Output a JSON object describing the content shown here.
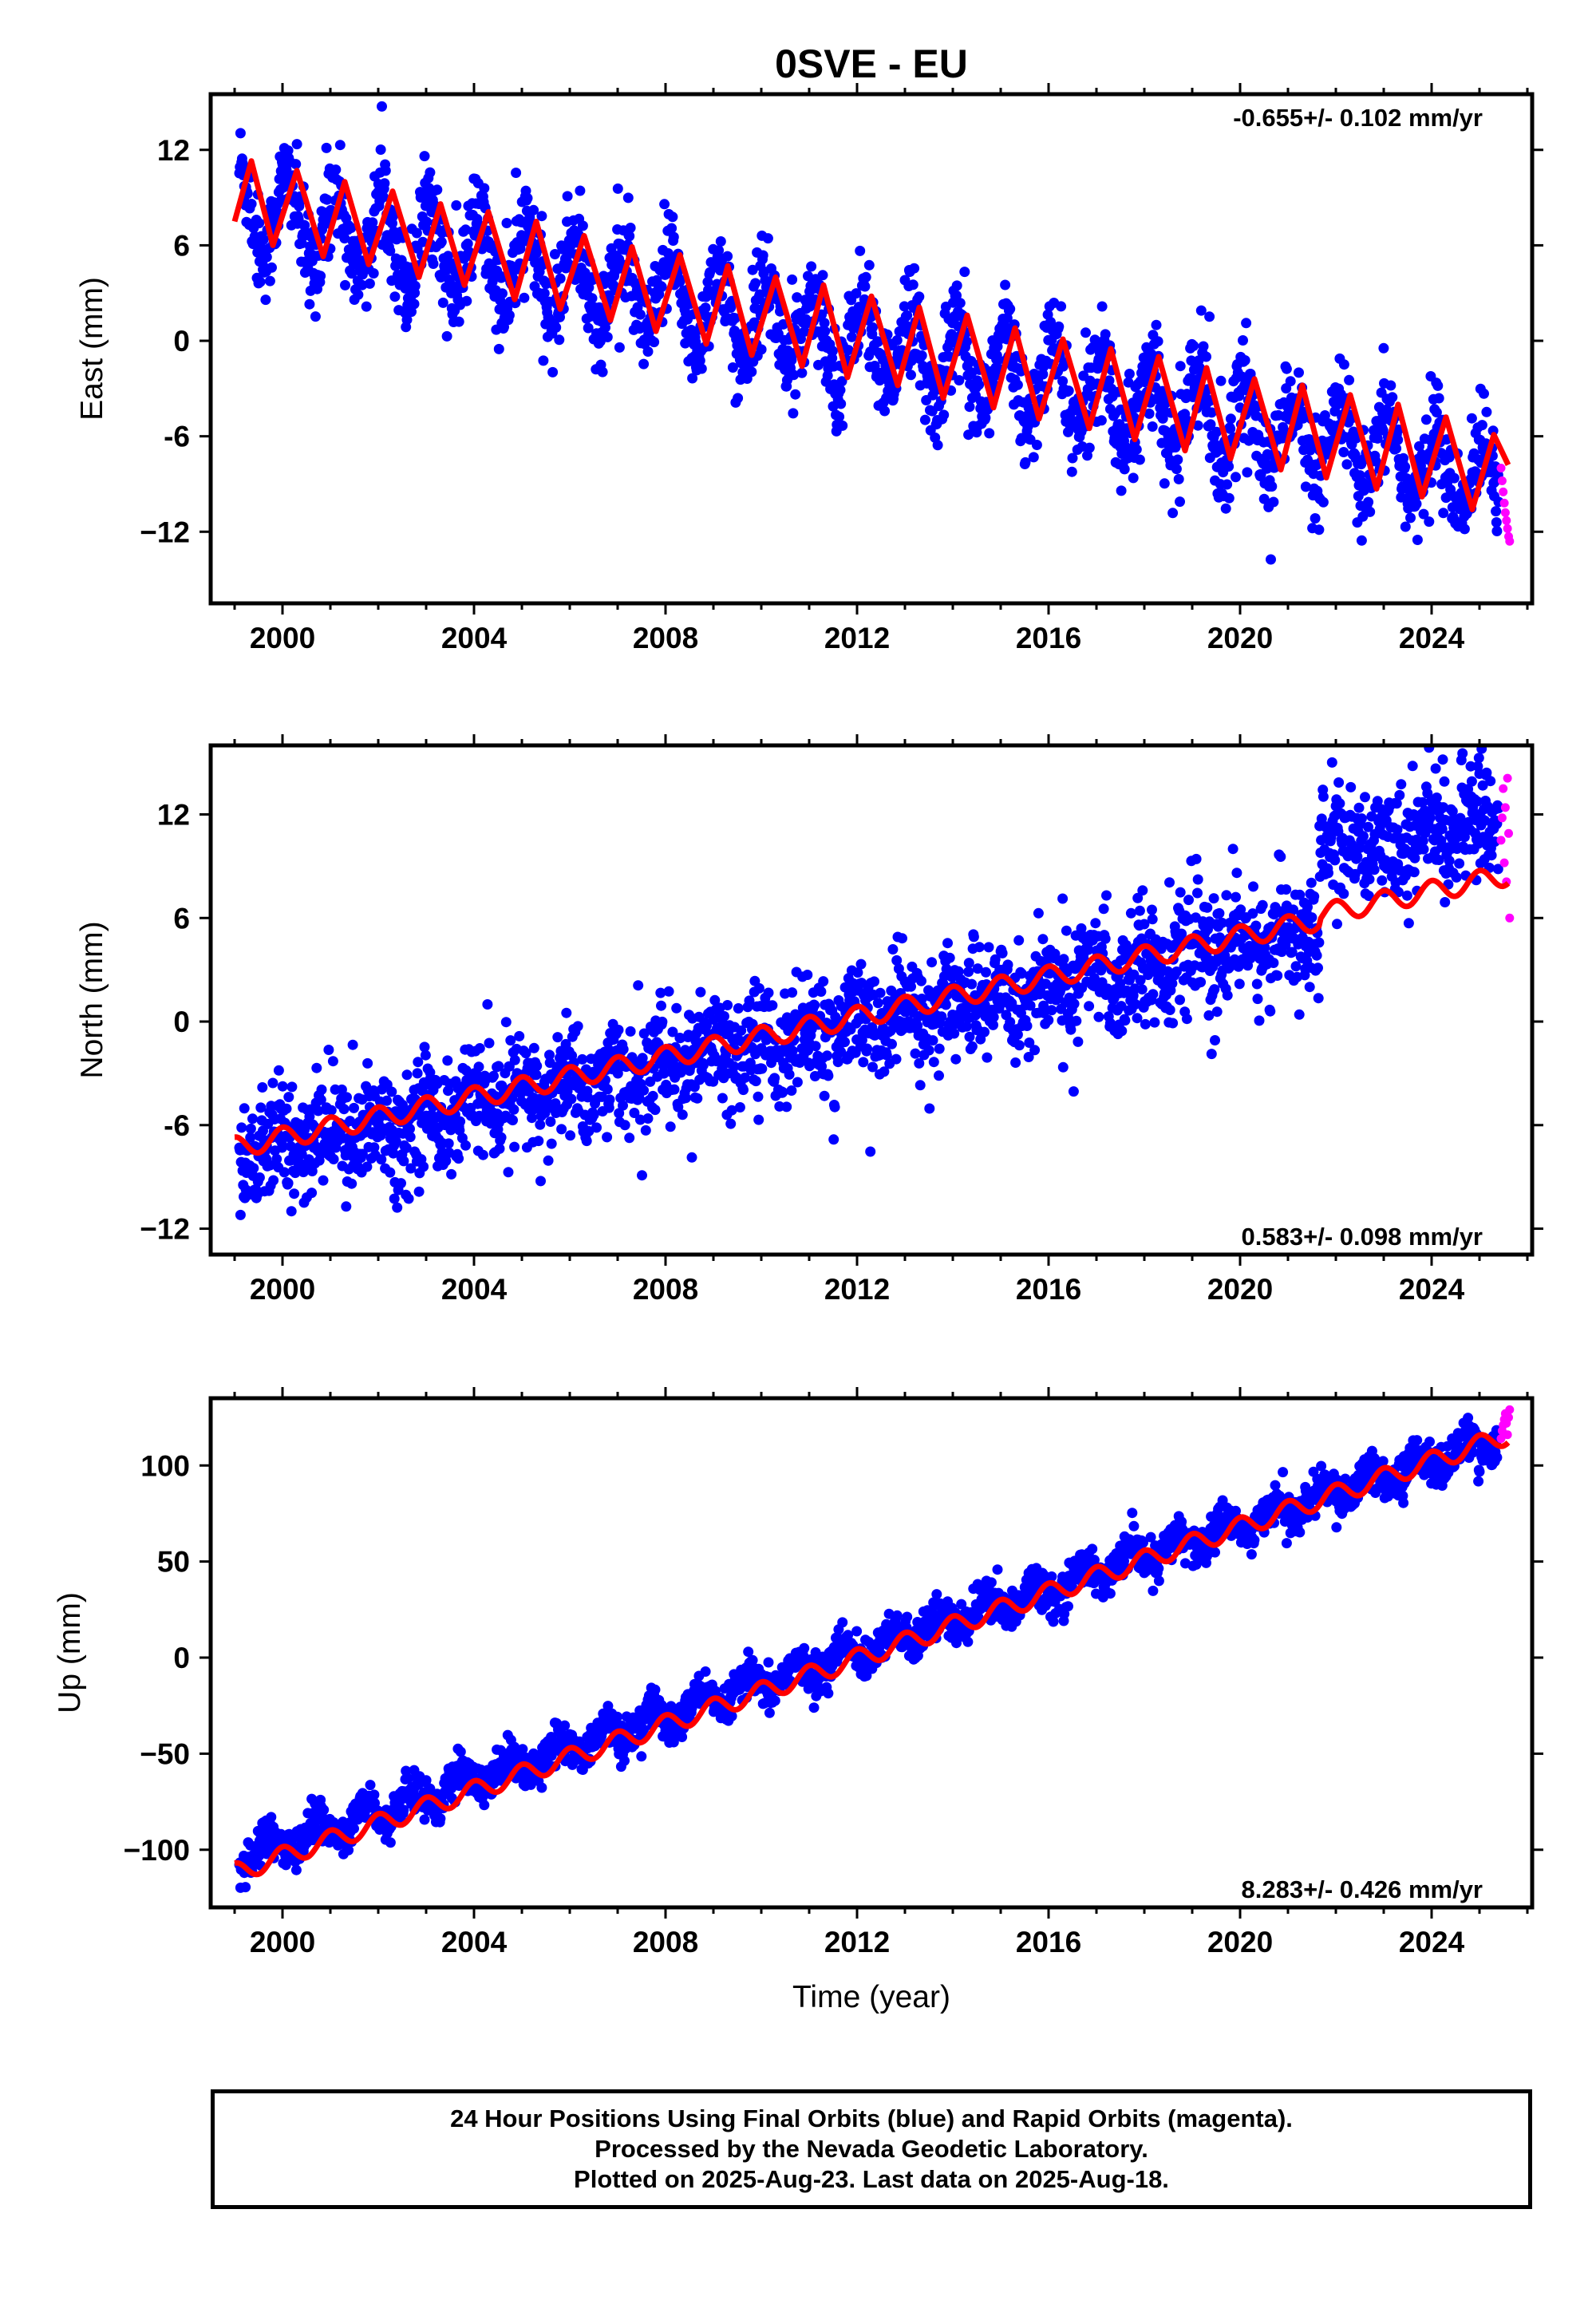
{
  "title": "0SVE - EU",
  "colors": {
    "final_orbits": "#0000ff",
    "rapid_orbits": "#ff00ff",
    "model_fit": "#ff0000",
    "frame": "#000000"
  },
  "chart_data": [
    {
      "type": "scatter",
      "panel": "east",
      "ylabel": "East (mm)",
      "xlabel": "",
      "xlim": [
        1998.5,
        2026.1
      ],
      "ylim": [
        -16.5,
        15.5
      ],
      "xticks": [
        2000,
        2004,
        2008,
        2012,
        2016,
        2020,
        2024
      ],
      "yticks": [
        12,
        6,
        0,
        -6,
        -12
      ],
      "ytick_labels": [
        "12",
        "6",
        "0",
        "-6",
        "−12"
      ],
      "rate_label": "-0.655+/- 0.102 mm/yr",
      "rate_position": "top-right",
      "grid": false,
      "series": [
        {
          "name": "Final Orbits",
          "color": "#0000ff",
          "x_range": [
            1999.1,
            2025.4
          ],
          "trend_start": 8.4,
          "rate": -0.655,
          "annual_amplitude": 2.6,
          "annual_phase": 0.15,
          "scatter": 1.5
        },
        {
          "name": "Rapid Orbits",
          "color": "#ff00ff",
          "x_range": [
            2025.45,
            2025.63
          ],
          "values": [
            -8.0,
            -8.8,
            -9.5,
            -10.2,
            -10.8,
            -11.3,
            -11.8,
            -12.3,
            -12.6
          ]
        },
        {
          "name": "Model Fit",
          "color": "#ff0000",
          "style": "line",
          "x": [
            1999.0,
            1999.35,
            1999.8,
            2000.3,
            2000.85,
            2001.3,
            2001.8,
            2002.3,
            2002.85,
            2003.3,
            2003.8,
            2004.3,
            2004.85,
            2005.3,
            2005.8,
            2006.3,
            2006.85,
            2007.3,
            2007.8,
            2008.3,
            2008.85,
            2009.3,
            2009.8,
            2010.3,
            2010.85,
            2011.3,
            2011.8,
            2012.3,
            2012.85,
            2013.3,
            2013.8,
            2014.3,
            2014.85,
            2015.3,
            2015.8,
            2016.3,
            2016.85,
            2017.3,
            2017.8,
            2018.3,
            2018.85,
            2019.3,
            2019.8,
            2020.3,
            2020.85,
            2021.3,
            2021.8,
            2022.3,
            2022.85,
            2023.3,
            2023.8,
            2024.3,
            2024.85,
            2025.3,
            2025.6
          ],
          "y": [
            7.5,
            11.3,
            6.0,
            10.7,
            5.3,
            10.0,
            4.8,
            9.4,
            4.0,
            8.6,
            3.5,
            8.1,
            2.6,
            7.5,
            2.0,
            6.6,
            1.3,
            5.9,
            0.6,
            5.4,
            -0.2,
            4.7,
            -0.9,
            4.0,
            -1.6,
            3.5,
            -2.3,
            2.8,
            -2.8,
            2.1,
            -3.6,
            1.6,
            -4.2,
            0.8,
            -4.9,
            0.1,
            -5.5,
            -0.5,
            -6.2,
            -1.0,
            -6.9,
            -1.7,
            -7.4,
            -2.4,
            -8.1,
            -2.8,
            -8.6,
            -3.4,
            -9.3,
            -4.0,
            -9.8,
            -4.8,
            -10.6,
            -5.9,
            -7.8
          ]
        }
      ]
    },
    {
      "type": "scatter",
      "panel": "north",
      "ylabel": "North (mm)",
      "xlabel": "",
      "xlim": [
        1998.5,
        2026.1
      ],
      "ylim": [
        -13.5,
        16
      ],
      "xticks": [
        2000,
        2004,
        2008,
        2012,
        2016,
        2020,
        2024
      ],
      "yticks": [
        12,
        6,
        0,
        -6,
        -12
      ],
      "ytick_labels": [
        "12",
        "6",
        "0",
        "-6",
        "−12"
      ],
      "rate_label": "0.583+/- 0.098 mm/yr",
      "rate_position": "bottom-right",
      "grid": false,
      "offset": {
        "x": 2021.65,
        "jump": 4.3
      },
      "series": [
        {
          "name": "Final Orbits",
          "color": "#0000ff",
          "x_range": [
            1999.1,
            2025.4
          ],
          "trend_start": -7.8,
          "rate": 0.583,
          "annual_amplitude": 0.7,
          "annual_phase": 0.3,
          "scatter": 1.6
        },
        {
          "name": "Rapid Orbits",
          "color": "#ff00ff",
          "x_range": [
            2025.45,
            2025.63
          ],
          "values": [
            10.5,
            11.8,
            13.5,
            9.2,
            12.4,
            8.1,
            14.1,
            10.9,
            6.0
          ]
        },
        {
          "name": "Model Fit",
          "color": "#ff0000",
          "style": "line",
          "x": [
            1999.0,
            2025.6
          ],
          "y": [
            -7.3,
            8.2
          ],
          "annual_amplitude": 0.6
        }
      ]
    },
    {
      "type": "scatter",
      "panel": "up",
      "ylabel": "Up (mm)",
      "xlabel": "Time (year)",
      "xlim": [
        1998.5,
        2026.1
      ],
      "ylim": [
        -130,
        135
      ],
      "xticks": [
        2000,
        2004,
        2008,
        2012,
        2016,
        2020,
        2024
      ],
      "yticks": [
        100,
        50,
        0,
        -50,
        -100
      ],
      "ytick_labels": [
        "100",
        "50",
        "0",
        "−50",
        "−100"
      ],
      "rate_label": "8.283+/- 0.426 mm/yr",
      "rate_position": "bottom-right",
      "grid": false,
      "series": [
        {
          "name": "Final Orbits",
          "color": "#0000ff",
          "x_range": [
            1999.1,
            2025.4
          ],
          "trend_start": -104,
          "rate": 8.283,
          "annual_amplitude": 6,
          "annual_phase": 0.55,
          "scatter": 5
        },
        {
          "name": "Rapid Orbits",
          "color": "#ff00ff",
          "x_range": [
            2025.45,
            2025.63
          ],
          "values": [
            114,
            118,
            121,
            124,
            127,
            122,
            116,
            125,
            129
          ]
        },
        {
          "name": "Model Fit",
          "color": "#ff0000",
          "style": "line",
          "x": [
            1999.0,
            2025.6
          ],
          "y": [
            -112,
            116
          ],
          "annual_amplitude": 5
        }
      ]
    }
  ],
  "caption": {
    "line1": "24 Hour Positions Using Final Orbits (blue) and Rapid Orbits (magenta).",
    "line2": "Processed by the Nevada Geodetic Laboratory.",
    "line3": "Plotted on 2025-Aug-23. Last data on 2025-Aug-18."
  }
}
